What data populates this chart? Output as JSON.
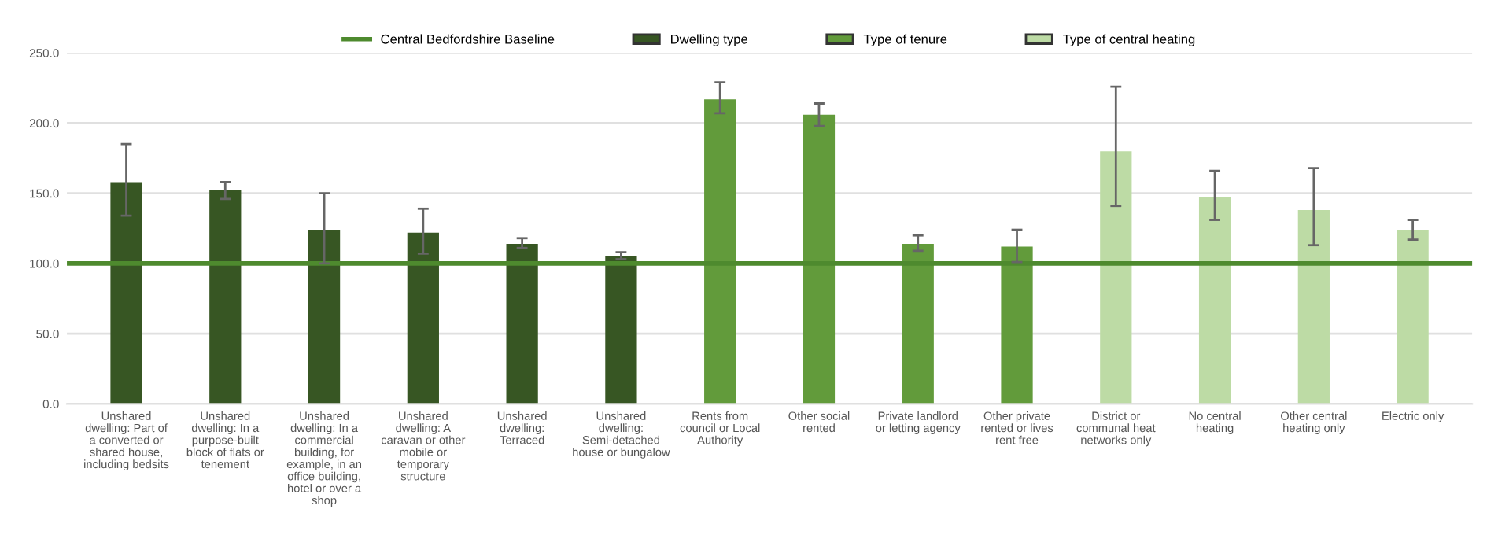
{
  "chart_data": {
    "type": "bar",
    "categories": [
      "Unshared dwelling: Part of a converted or shared house, including bedsits",
      "Unshared dwelling: In a purpose-built block of flats or tenement",
      "Unshared dwelling: In a commercial building, for example, in an office building, hotel or over a shop",
      "Unshared dwelling: A caravan or other mobile or temporary structure",
      "Unshared dwelling: Terraced",
      "Unshared dwelling: Semi-detached house or bungalow",
      "Rents from council or Local Authority",
      "Other social rented",
      "Private landlord or letting agency",
      "Other private rented or lives rent free",
      "District or communal heat networks only",
      "No central heating",
      "Other central heating only",
      "Electric only"
    ],
    "series": [
      {
        "name": "Dwelling type",
        "color": "#375623",
        "values": [
          158,
          152,
          124,
          122,
          114,
          105,
          null,
          null,
          null,
          null,
          null,
          null,
          null,
          null
        ],
        "errors": [
          [
            134,
            185
          ],
          [
            146,
            158
          ],
          [
            100,
            150
          ],
          [
            107,
            139
          ],
          [
            111,
            118
          ],
          [
            103,
            108
          ],
          null,
          null,
          null,
          null,
          null,
          null,
          null,
          null
        ]
      },
      {
        "name": "Type of tenure",
        "color": "#629b3b",
        "values": [
          null,
          null,
          null,
          null,
          null,
          null,
          217,
          206,
          114,
          112,
          null,
          null,
          null,
          null
        ],
        "errors": [
          null,
          null,
          null,
          null,
          null,
          null,
          [
            207,
            229
          ],
          [
            198,
            214
          ],
          [
            109,
            120
          ],
          [
            101,
            124
          ],
          null,
          null,
          null,
          null
        ]
      },
      {
        "name": "Type of central heating",
        "color": "#bddba5",
        "values": [
          null,
          null,
          null,
          null,
          null,
          null,
          null,
          null,
          null,
          null,
          180,
          147,
          138,
          124
        ],
        "errors": [
          null,
          null,
          null,
          null,
          null,
          null,
          null,
          null,
          null,
          null,
          [
            141,
            226
          ],
          [
            131,
            166
          ],
          [
            113,
            168
          ],
          [
            117,
            131
          ]
        ]
      }
    ],
    "ref_lines": [
      {
        "axis": "y",
        "value": 100,
        "label": "Central Bedfordshire Baseline",
        "color": "#4e8a2e"
      }
    ],
    "ylim": [
      0,
      250
    ],
    "yticks": [
      {
        "value": 0,
        "label": "0.0"
      },
      {
        "value": 50,
        "label": "50.0"
      },
      {
        "value": 100,
        "label": "100.0"
      },
      {
        "value": 150,
        "label": "150.0"
      },
      {
        "value": 200,
        "label": "200.0"
      },
      {
        "value": 250,
        "label": "250.0"
      }
    ],
    "grid": "y",
    "legend": "top"
  }
}
